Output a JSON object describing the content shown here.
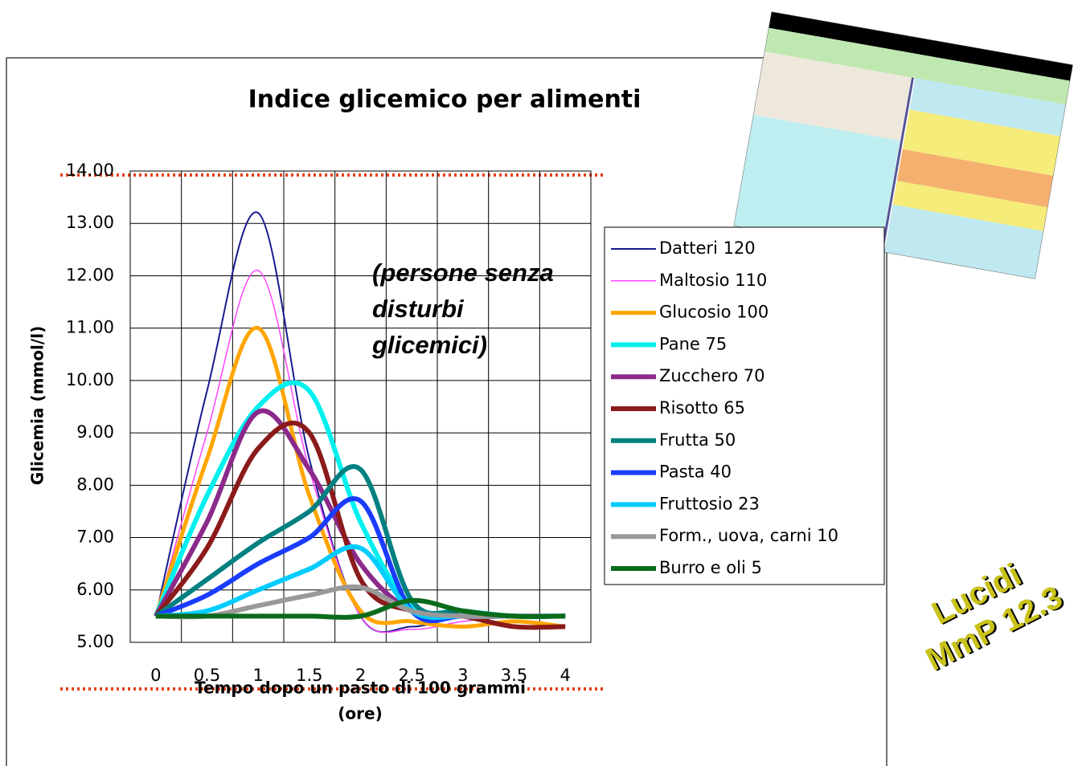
{
  "chart_data": {
    "type": "line",
    "title": "Indice glicemico per alimenti",
    "annotation": [
      "(persone senza",
      "disturbi",
      "glicemici)"
    ],
    "x_label": [
      "Tempo dopo un pasto di 100 grammi",
      "(ore)"
    ],
    "y_label": "Glicemia (mmol/l)",
    "categories": [
      "0",
      "0.5",
      "1",
      "1.5",
      "2",
      "2.5",
      "3",
      "3.5",
      "4"
    ],
    "ylim": [
      5,
      14
    ],
    "yticks": [
      {
        "value": 5,
        "label": "5.00"
      },
      {
        "value": 6,
        "label": "6.00"
      },
      {
        "value": 7,
        "label": "7.00"
      },
      {
        "value": 8,
        "label": "8.00"
      },
      {
        "value": 9,
        "label": "9.00"
      },
      {
        "value": 10,
        "label": "10.00"
      },
      {
        "value": 11,
        "label": "11.00"
      },
      {
        "value": 12,
        "label": "12.00"
      },
      {
        "value": 13,
        "label": "13.00"
      },
      {
        "value": 14,
        "label": "14.00"
      }
    ],
    "grid": true,
    "legend": "right",
    "series": [
      {
        "name": "Datteri 120",
        "color": "#1a1a8c",
        "values": [
          5.5,
          9.8,
          13.2,
          8.5,
          5.5,
          5.3,
          5.5,
          5.5,
          5.5
        ]
      },
      {
        "name": "Maltosio 110",
        "color": "#ff44ff",
        "values": [
          5.5,
          9.0,
          12.1,
          8.3,
          5.5,
          5.25,
          5.4,
          5.5,
          5.5
        ]
      },
      {
        "name": "Glucosio 100",
        "color": "#ffa500",
        "values": [
          5.5,
          8.5,
          11.0,
          7.8,
          5.6,
          5.4,
          5.3,
          5.4,
          5.3
        ]
      },
      {
        "name": "Pane 75",
        "color": "#00f0f0",
        "values": [
          5.5,
          7.8,
          9.5,
          9.8,
          7.3,
          5.7,
          5.6,
          5.5,
          5.5
        ]
      },
      {
        "name": "Zucchero 70",
        "color": "#8b2a8b",
        "values": [
          5.5,
          7.3,
          9.4,
          8.3,
          6.5,
          5.6,
          5.5,
          5.5,
          5.5
        ]
      },
      {
        "name": "Risotto 65",
        "color": "#8b1a1a",
        "values": [
          5.5,
          6.8,
          8.7,
          9.0,
          6.2,
          5.6,
          5.5,
          5.3,
          5.3
        ]
      },
      {
        "name": "Frutta 50",
        "color": "#008080",
        "values": [
          5.5,
          6.2,
          6.9,
          7.5,
          8.3,
          5.8,
          5.6,
          5.5,
          5.5
        ]
      },
      {
        "name": "Pasta 40",
        "color": "#1a3cff",
        "values": [
          5.5,
          5.9,
          6.5,
          7.0,
          7.7,
          5.6,
          5.5,
          5.5,
          5.5
        ]
      },
      {
        "name": "Fruttosio 23",
        "color": "#00ccff",
        "values": [
          5.5,
          5.6,
          6.0,
          6.4,
          6.8,
          5.6,
          5.5,
          5.5,
          5.5
        ]
      },
      {
        "name": "Form., uova, carni 10",
        "color": "#999999",
        "values": [
          5.5,
          5.5,
          5.7,
          5.9,
          6.05,
          5.6,
          5.5,
          5.5,
          5.5
        ]
      },
      {
        "name": "Burro e oli 5",
        "color": "#0a6b1a",
        "values": [
          5.5,
          5.5,
          5.5,
          5.5,
          5.5,
          5.8,
          5.6,
          5.5,
          5.5
        ]
      }
    ]
  },
  "stamp": [
    "Lucidi",
    "MmP 12.3"
  ]
}
